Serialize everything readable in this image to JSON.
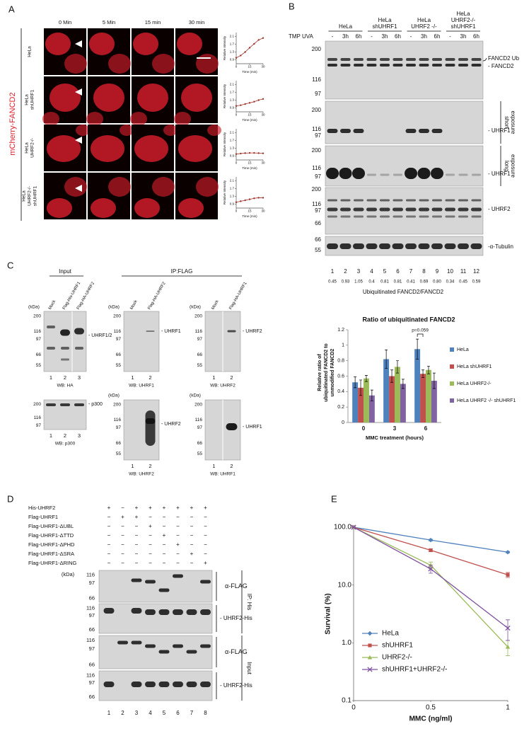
{
  "panel_labels": [
    "A",
    "B",
    "C",
    "D",
    "E"
  ],
  "panel_a": {
    "reporter": "mCherry-FANCD2",
    "timepoints": [
      "0 Min",
      "5 Min",
      "15 min",
      "30 min"
    ],
    "rows": [
      [
        "HeLa"
      ],
      [
        "HeLa",
        "shUHRF1"
      ],
      [
        "HeLa",
        "UHRF2-/-"
      ],
      [
        "HeLa",
        "UHRF2-/-",
        "shUHRF1"
      ]
    ]
  },
  "panel_b": {
    "groups": [
      [
        "HeLa"
      ],
      [
        "HeLa",
        "shUHRF1"
      ],
      [
        "HeLa",
        "UHRF2 -/-"
      ],
      [
        "HeLa",
        "UHRF2-/-",
        "shUHRF1"
      ]
    ],
    "treatment_label": "TMP UVA",
    "lane_conditions": [
      "-",
      "3h",
      "6h",
      "-",
      "3h",
      "6h",
      "-",
      "3h",
      "6h",
      "-",
      "3h",
      "6h"
    ],
    "blots": [
      {
        "markers": [
          "200",
          "116",
          "97"
        ],
        "labels": [
          "FANCD2 Ub",
          "- FANCD2"
        ]
      },
      {
        "markers": [
          "200",
          "116",
          "97"
        ],
        "labels": [
          "- UHRF1"
        ]
      },
      {
        "markers": [
          "200",
          "116",
          "97"
        ],
        "labels": [
          "- UHRF1"
        ]
      },
      {
        "markers": [
          "200",
          "116",
          "97",
          "66"
        ],
        "labels": [
          "- UHRF2"
        ]
      },
      {
        "markers": [
          "66",
          "55"
        ],
        "labels": [
          "-α-Tubulin"
        ]
      }
    ],
    "exposure_labels": [
      [
        "short",
        "exposure"
      ],
      [
        "long",
        "exposure"
      ]
    ],
    "lanes": [
      "1",
      "2",
      "3",
      "4",
      "5",
      "6",
      "7",
      "8",
      "9",
      "10",
      "11",
      "12"
    ],
    "quantification": [
      "0.45",
      "0.93",
      "1.05",
      "0.4",
      "0.81",
      "0.81",
      "0.41",
      "0.69",
      "0.80",
      "0.34",
      "0.45",
      "0.59"
    ],
    "quantification_label": "Ubiquitinated FANCD2/FANCD2"
  },
  "panel_c": {
    "sections": [
      "Input",
      "IP:FLAG"
    ],
    "blots": [
      {
        "lane_headers": [
          "Mock",
          "Flag-His-UHRF1",
          "Flag-HA-UHRF2"
        ],
        "kda": "(kDa)",
        "markers": [
          "200",
          "116",
          "97",
          "66",
          "55"
        ],
        "target": "- UHRF1/2",
        "lanes": [
          "1",
          "2",
          "3"
        ],
        "antibody": "WB: HA"
      },
      {
        "markers": [
          "200",
          "116",
          "97"
        ],
        "target": "- p300",
        "lanes": [
          "1",
          "2",
          "3"
        ],
        "antibody": "WB: p300"
      },
      {
        "lane_headers": [
          "Mock",
          "Flag-HA-UHRF2"
        ],
        "kda": "(kDa)",
        "markers": [
          "200",
          "116",
          "97",
          "66",
          "55"
        ],
        "target": "- UHRF1",
        "lanes": [
          "1",
          "2"
        ],
        "antibody": "WB: UHRF1"
      },
      {
        "kda": "(kDa)",
        "markers": [
          "200",
          "116",
          "97",
          "66",
          "55"
        ],
        "target": "- UHRF2",
        "lanes": [
          "1",
          "2"
        ],
        "antibody": "WB: UHRF2"
      },
      {
        "lane_headers": [
          "Mock",
          "Flag-HA-UHRF1"
        ],
        "kda": "(kDa)",
        "markers": [
          "200",
          "116",
          "97",
          "66",
          "55"
        ],
        "target": "- UHRF2",
        "lanes": [
          "1",
          "2"
        ],
        "antibody": "WB: UHRF2"
      },
      {
        "kda": "(kDa)",
        "markers": [
          "200",
          "116",
          "97",
          "66",
          "55"
        ],
        "target": "- UHRF1",
        "lanes": [
          "1",
          "2"
        ],
        "antibody": "WB: UHRF1"
      }
    ]
  },
  "panel_d": {
    "constructs": [
      "His-UHRF2",
      "Flag-UHRF1",
      "Flag-UHRF1-ΔUBL",
      "Flag-UHRF1-ΔTTD",
      "Flag-UHRF1-ΔPHD",
      "Flag-UHRF1-ΔSRA",
      "Flag-UHRF1-ΔRING"
    ],
    "signs": [
      [
        "+",
        "−",
        "+",
        "+",
        "+",
        "+",
        "+",
        "+"
      ],
      [
        "−",
        "+",
        "+",
        "−",
        "−",
        "−",
        "−",
        "−"
      ],
      [
        "−",
        "−",
        "−",
        "+",
        "−",
        "−",
        "−",
        "−"
      ],
      [
        "−",
        "−",
        "−",
        "−",
        "+",
        "−",
        "−",
        "−"
      ],
      [
        "−",
        "−",
        "−",
        "−",
        "−",
        "+",
        "−",
        "−"
      ],
      [
        "−",
        "−",
        "−",
        "−",
        "−",
        "−",
        "+",
        "−"
      ],
      [
        "−",
        "−",
        "−",
        "−",
        "−",
        "−",
        "−",
        "+"
      ]
    ],
    "kda": "(kDa)",
    "blots": [
      {
        "markers": [
          "116",
          "97",
          "66"
        ],
        "target": "α-FLAG"
      },
      {
        "markers": [
          "116",
          "97",
          "66"
        ],
        "target": "- UHRF2-His"
      },
      {
        "markers": [
          "116",
          "97",
          "66"
        ],
        "target": "α-FLAG"
      },
      {
        "markers": [
          "116",
          "97",
          "66"
        ],
        "target": "- UHRF2-His"
      }
    ],
    "groups": [
      "IP: His",
      "Input"
    ],
    "lanes": [
      "1",
      "2",
      "3",
      "4",
      "5",
      "6",
      "7",
      "8"
    ]
  },
  "chart_data": [
    {
      "type": "line",
      "ylabel": "Relative Intensity",
      "xlabel": "Time (min)",
      "x": [
        0,
        5,
        10,
        15,
        20,
        25,
        30
      ],
      "series": [
        {
          "color": "#a0342c",
          "marker": "circle",
          "values": [
            1.0,
            1.12,
            1.3,
            1.52,
            1.72,
            1.92,
            2.02
          ]
        }
      ],
      "xlim": [
        0,
        30
      ],
      "xticks": [
        0,
        15,
        30
      ],
      "ylim": [
        0.7,
        2.3
      ],
      "yticks": [
        0.9,
        1.3,
        1.7,
        2.1
      ]
    },
    {
      "type": "line",
      "ylabel": "Relative Intensity",
      "xlabel": "Time (min)",
      "x": [
        0,
        5,
        10,
        15,
        20,
        25,
        30
      ],
      "series": [
        {
          "color": "#a0342c",
          "marker": "circle",
          "values": [
            1.0,
            1.04,
            1.1,
            1.16,
            1.22,
            1.3,
            1.36
          ]
        }
      ],
      "xlim": [
        0,
        30
      ],
      "xticks": [
        0,
        15,
        30
      ],
      "ylim": [
        0.7,
        2.3
      ],
      "yticks": [
        0.9,
        1.3,
        1.7,
        2.1
      ]
    },
    {
      "type": "line",
      "ylabel": "Relative Intensity",
      "xlabel": "Time (min)",
      "x": [
        0,
        5,
        10,
        15,
        20,
        25,
        30
      ],
      "series": [
        {
          "color": "#a0342c",
          "marker": "circle",
          "values": [
            1.0,
            1.03,
            1.05,
            1.06,
            1.06,
            1.05,
            1.04
          ]
        }
      ],
      "xlim": [
        0,
        30
      ],
      "xticks": [
        0,
        15,
        30
      ],
      "ylim": [
        0.7,
        2.3
      ],
      "yticks": [
        0.9,
        1.3,
        1.7,
        2.1
      ]
    },
    {
      "type": "line",
      "ylabel": "Relative Intensity",
      "xlabel": "Time (min)",
      "x": [
        0,
        5,
        10,
        15,
        20,
        25,
        30
      ],
      "series": [
        {
          "color": "#a0342c",
          "marker": "circle",
          "values": [
            1.0,
            1.05,
            1.1,
            1.15,
            1.2,
            1.23,
            1.23
          ]
        }
      ],
      "xlim": [
        0,
        30
      ],
      "xticks": [
        0,
        15,
        30
      ],
      "ylim": [
        0.7,
        2.3
      ],
      "yticks": [
        0.9,
        1.3,
        1.7,
        2.1
      ]
    },
    {
      "type": "bar",
      "title": "Ratio of ubiquitinated FANCD2",
      "ylabel": [
        "Relative ratio of",
        "ubiquitinated FANCD2 to",
        "unmodified FANCD2"
      ],
      "xlabel": "MMC treatment (hours)",
      "categories": [
        "0",
        "3",
        "6"
      ],
      "series": [
        {
          "name": "HeLa",
          "color": "#4f81bd",
          "values": [
            0.52,
            0.82,
            0.95
          ],
          "errors": [
            0.07,
            0.12,
            0.13
          ]
        },
        {
          "name": "HeLa shUHRF1",
          "color": "#c0504d",
          "values": [
            0.45,
            0.6,
            0.63
          ],
          "errors": [
            0.1,
            0.08,
            0.05
          ]
        },
        {
          "name": "HeLa UHRF2-/-",
          "color": "#9bbb59",
          "values": [
            0.57,
            0.72,
            0.68
          ],
          "errors": [
            0.04,
            0.08,
            0.05
          ]
        },
        {
          "name": "HeLa UHRF2 -/- shUHRF1",
          "color": "#8064a2",
          "values": [
            0.35,
            0.5,
            0.54
          ],
          "errors": [
            0.07,
            0.06,
            0.1
          ]
        }
      ],
      "ylim": [
        0,
        1.2
      ],
      "yticks": [
        0,
        0.2,
        0.4,
        0.6,
        0.8,
        1,
        1.2
      ],
      "legend": "right",
      "annotation": "p=0.059"
    },
    {
      "type": "line",
      "ylabel": "Survival (%)",
      "xlabel": "MMC (ng/ml)",
      "x": [
        0,
        0.5,
        1
      ],
      "log_y": true,
      "series": [
        {
          "name": "HeLa",
          "color": "#4f81bd",
          "marker": "diamond",
          "values": [
            100,
            60,
            37
          ],
          "errors": [
            0,
            2,
            1
          ]
        },
        {
          "name": "shUHRF1",
          "color": "#c0504d",
          "marker": "square",
          "values": [
            100,
            40,
            15
          ],
          "errors": [
            0,
            2,
            1.5
          ]
        },
        {
          "name": "UHRF2-/-",
          "color": "#9bbb59",
          "marker": "triangle",
          "values": [
            100,
            22,
            0.85
          ],
          "errors": [
            0,
            3,
            0.25
          ]
        },
        {
          "name": "shUHRF1+UHRF2-/-",
          "color": "#7f4fa0",
          "marker": "x",
          "values": [
            100,
            19,
            1.8
          ],
          "errors": [
            0,
            3,
            0.7
          ]
        }
      ],
      "xlim": [
        0,
        1
      ],
      "xticks": [
        0,
        0.5,
        1
      ],
      "ylim": [
        0.1,
        100
      ],
      "yticks": [
        0.1,
        {
          "value": 1,
          "label": "1.0"
        },
        {
          "value": 10,
          "label": "10.0"
        },
        {
          "value": 100,
          "label": "100.0"
        }
      ],
      "legend": "lower left"
    }
  ]
}
